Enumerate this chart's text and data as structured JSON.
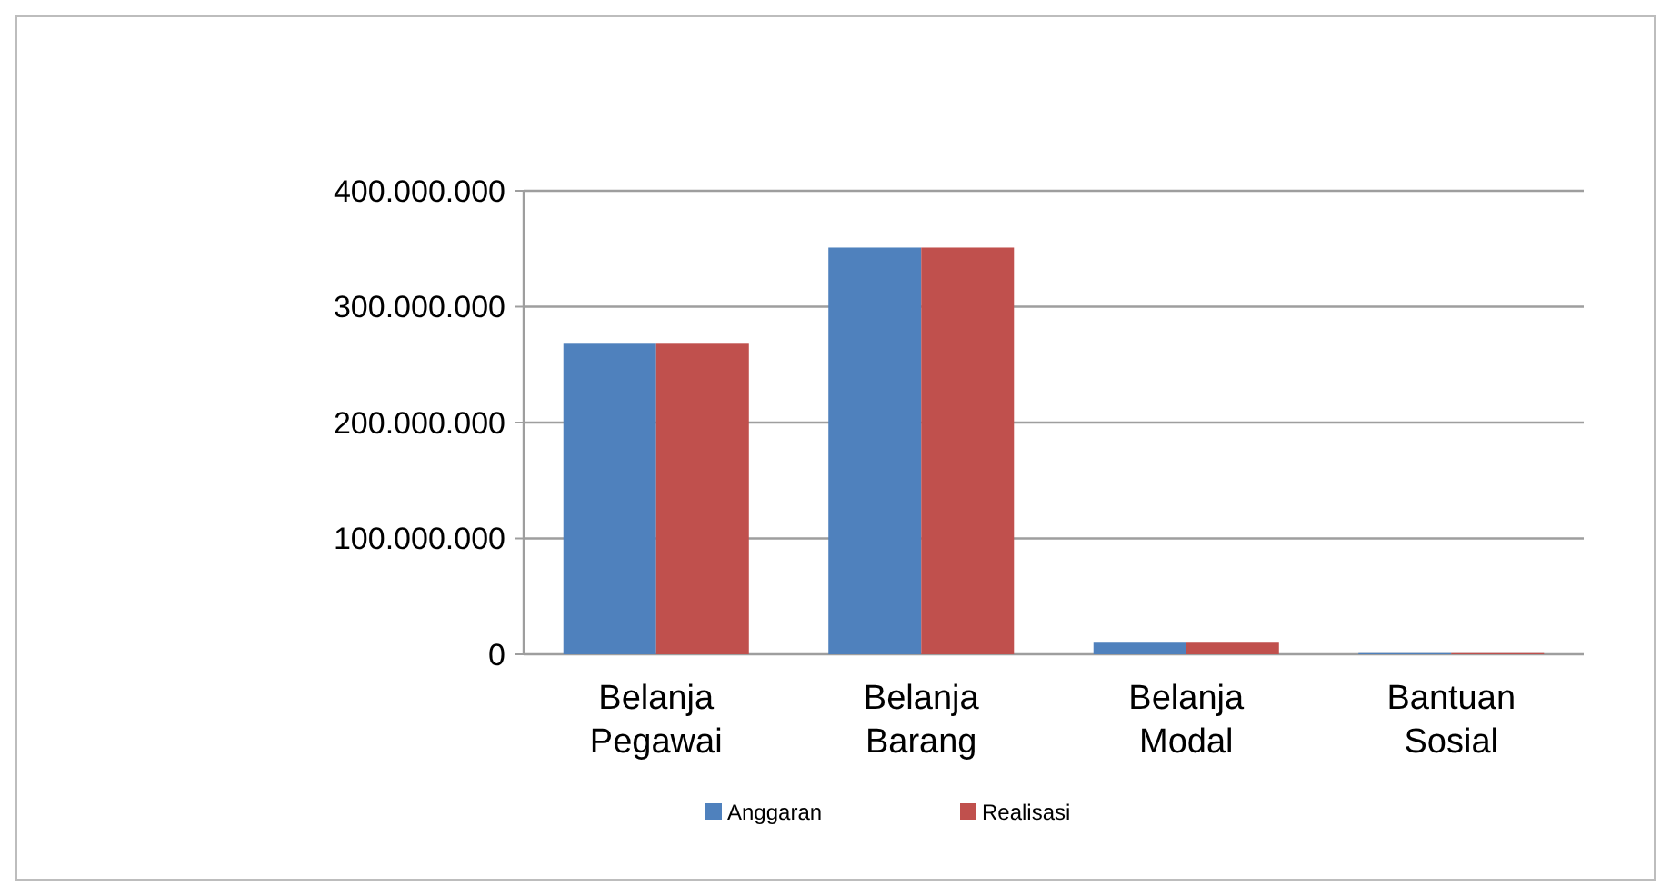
{
  "chart_data": {
    "type": "bar",
    "categories": [
      "Belanja Pegawai",
      "Belanja Barang",
      "Belanja Modal",
      "Bantuan Sosial"
    ],
    "series": [
      {
        "name": "Anggaran",
        "color": "#4f81bd",
        "values": [
          268000000,
          351000000,
          10000000,
          1000000
        ]
      },
      {
        "name": "Realisasi",
        "color": "#c0504d",
        "values": [
          268000000,
          351000000,
          10000000,
          1000000
        ]
      }
    ],
    "ylim": [
      0,
      400000000
    ],
    "yticks": [
      {
        "value": 0,
        "label": "0"
      },
      {
        "value": 100000000,
        "label": "100.000.000"
      },
      {
        "value": 200000000,
        "label": "200.000.000"
      },
      {
        "value": 300000000,
        "label": "300.000.000"
      },
      {
        "value": 400000000,
        "label": "400.000.000"
      }
    ],
    "grid": "y",
    "legend": "bottom"
  }
}
